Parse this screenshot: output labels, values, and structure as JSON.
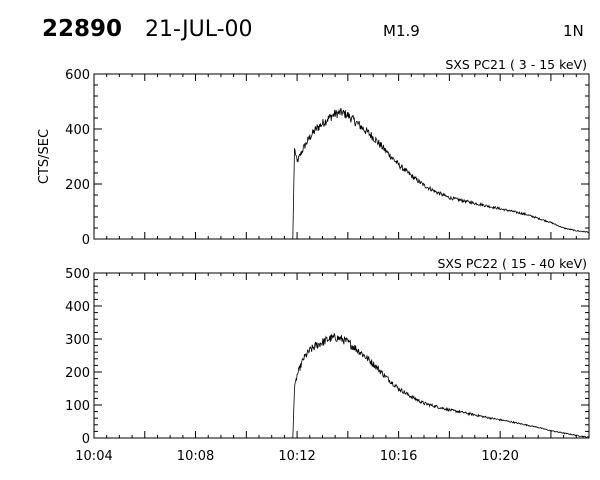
{
  "header": {
    "event_id": "22890",
    "date": "21-JUL-00",
    "flare_class": "M1.9",
    "position": "1N"
  },
  "chart_data": [
    {
      "type": "line",
      "title": "SXS PC21  (  3 - 15 keV)",
      "ylabel": "CTS/SEC",
      "xlabel": "",
      "xlim": [
        "10:04",
        "10:23:30"
      ],
      "ylim": [
        0,
        600
      ],
      "yticks": [
        "0",
        "200",
        "400",
        "600"
      ],
      "xticks": [],
      "grid": false,
      "series": [
        {
          "x": [
            "10:11:50",
            "10:11:54",
            "10:12:00",
            "10:12:15",
            "10:12:30",
            "10:12:45",
            "10:13:00",
            "10:13:15",
            "10:13:30",
            "10:13:45",
            "10:14:00",
            "10:14:15",
            "10:14:30",
            "10:15:00",
            "10:15:30",
            "10:16:00",
            "10:16:30",
            "10:17:00",
            "10:17:30",
            "10:18:00",
            "10:18:30",
            "10:19:00",
            "10:19:30",
            "10:20:00",
            "10:20:30",
            "10:21:00",
            "10:21:30",
            "10:22:00",
            "10:22:30",
            "10:23:00",
            "10:23:30"
          ],
          "values": [
            0,
            330,
            280,
            330,
            370,
            400,
            420,
            440,
            455,
            460,
            450,
            430,
            410,
            370,
            320,
            270,
            230,
            195,
            170,
            150,
            140,
            130,
            120,
            110,
            100,
            90,
            75,
            60,
            40,
            30,
            25
          ]
        }
      ]
    },
    {
      "type": "line",
      "title": "SXS PC22  ( 15 - 40 keV)",
      "ylabel": "",
      "xlabel": "",
      "xlim": [
        "10:04",
        "10:23:30"
      ],
      "ylim": [
        0,
        500
      ],
      "yticks": [
        "0",
        "100",
        "200",
        "300",
        "400",
        "500"
      ],
      "xticks": [
        "10:04",
        "10:08",
        "10:12",
        "10:16",
        "10:20"
      ],
      "grid": false,
      "series": [
        {
          "x": [
            "10:11:50",
            "10:11:54",
            "10:12:00",
            "10:12:15",
            "10:12:30",
            "10:12:45",
            "10:13:00",
            "10:13:15",
            "10:13:30",
            "10:13:45",
            "10:14:00",
            "10:14:15",
            "10:14:30",
            "10:15:00",
            "10:15:30",
            "10:16:00",
            "10:16:30",
            "10:17:00",
            "10:17:30",
            "10:18:00",
            "10:18:30",
            "10:19:00",
            "10:19:30",
            "10:20:00",
            "10:20:30",
            "10:21:00",
            "10:21:30",
            "10:22:00",
            "10:22:30",
            "10:23:00",
            "10:23:30"
          ],
          "values": [
            0,
            150,
            190,
            240,
            265,
            280,
            290,
            300,
            305,
            300,
            290,
            275,
            260,
            225,
            185,
            150,
            125,
            105,
            95,
            85,
            78,
            70,
            62,
            55,
            48,
            40,
            32,
            22,
            15,
            8,
            2
          ]
        }
      ]
    }
  ]
}
